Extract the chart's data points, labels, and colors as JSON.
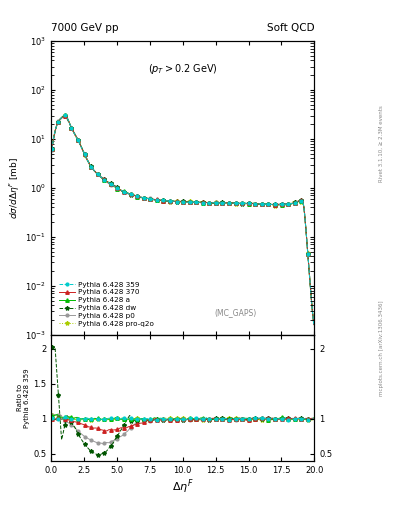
{
  "title_left": "7000 GeV pp",
  "title_right": "Soft QCD",
  "annotation": "(p_{T} > 0.2 GeV)",
  "mc_label": "(MC_GAPS)",
  "xlabel": "Δη^F",
  "ylabel_main": "dσ/dΔη^F [mb]",
  "ylabel_ratio": "Ratio to Pythia 6.428 359",
  "right_label_top": "Rivet 3.1.10, ≥ 2.3M events",
  "right_label_bottom": "mcplots.cern.ch [arXiv:1306.3436]",
  "xlim": [
    0,
    20
  ],
  "ylim_main_log": [
    -3,
    3
  ],
  "ylim_ratio": [
    0.4,
    2.2
  ],
  "series": [
    {
      "label": "Pythia 6.428 359",
      "color": "#00CCCC",
      "linestyle": "--",
      "marker": "o",
      "ms": 2.0
    },
    {
      "label": "Pythia 6.428 370",
      "color": "#CC2222",
      "linestyle": "-",
      "marker": "^",
      "ms": 2.5
    },
    {
      "label": "Pythia 6.428 a",
      "color": "#00BB00",
      "linestyle": "-",
      "marker": "^",
      "ms": 2.5
    },
    {
      "label": "Pythia 6.428 dw",
      "color": "#005500",
      "linestyle": "--",
      "marker": "*",
      "ms": 3.0
    },
    {
      "label": "Pythia 6.428 p0",
      "color": "#999999",
      "linestyle": "-",
      "marker": "o",
      "ms": 2.0
    },
    {
      "label": "Pythia 6.428 pro-q2o",
      "color": "#AACC00",
      "linestyle": ":",
      "marker": "*",
      "ms": 3.0
    }
  ]
}
